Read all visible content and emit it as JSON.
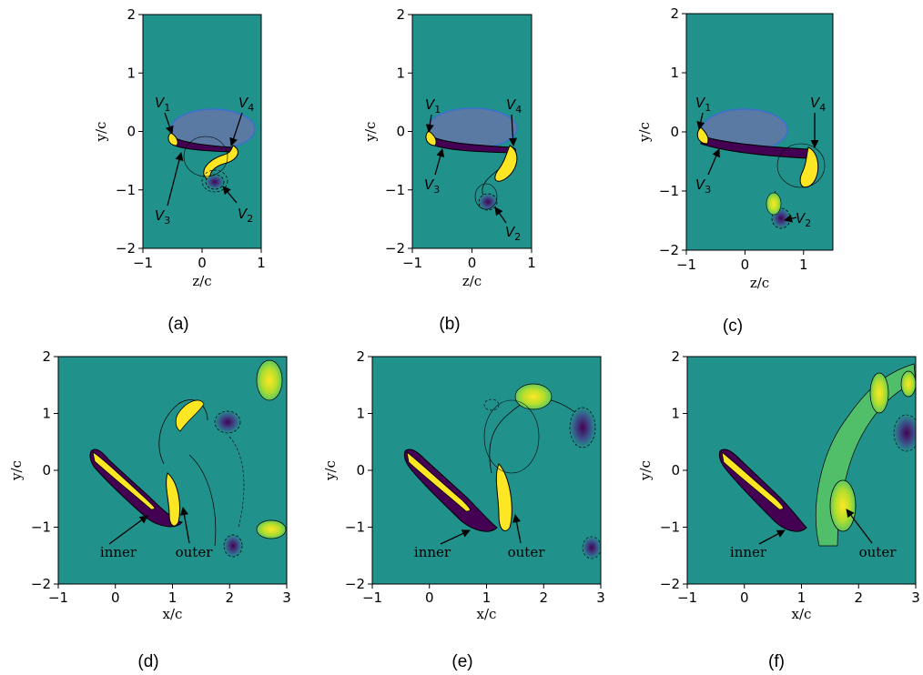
{
  "figure": {
    "colors": {
      "background": "#21918c",
      "positive_strong": "#fde725",
      "positive_mid": "#b5de2b",
      "positive_weak": "#5ec962",
      "negative_strong": "#440154",
      "negative_mid": "#3b528b",
      "contour_line": "#000000",
      "wing_ellipse": "#7a6fb0"
    },
    "top_row": {
      "x_label": "z/c",
      "y_label": "y/c",
      "y_ticks": [
        "2",
        "1",
        "0",
        "−1",
        "−2"
      ],
      "vortex_labels": {
        "V1": {
          "main": "V",
          "sub": "1"
        },
        "V2": {
          "main": "V",
          "sub": "2"
        },
        "V3": {
          "main": "V",
          "sub": "3"
        },
        "V4": {
          "main": "V",
          "sub": "4"
        }
      },
      "panels": [
        {
          "caption": "(a)",
          "x_ticks": [
            "−1",
            "0",
            "1"
          ],
          "xlim": [
            -1,
            1
          ],
          "ylim": [
            -2,
            2
          ]
        },
        {
          "caption": "(b)",
          "x_ticks": [
            "−1",
            "0",
            "1"
          ],
          "xlim": [
            -1,
            1
          ],
          "ylim": [
            -2,
            2
          ]
        },
        {
          "caption": "(c)",
          "x_ticks": [
            "−1",
            "0",
            "1"
          ],
          "xlim": [
            -1,
            1.5
          ],
          "ylim": [
            -2,
            2
          ]
        }
      ]
    },
    "bottom_row": {
      "x_label": "x/c",
      "y_label": "y/c",
      "y_ticks": [
        "2",
        "1",
        "0",
        "−1",
        "−2"
      ],
      "x_ticks": [
        "−1",
        "0",
        "1",
        "2",
        "3"
      ],
      "xlim": [
        -1,
        3
      ],
      "ylim": [
        -2,
        2
      ],
      "annotations": {
        "inner": "inner",
        "outer": "outer"
      },
      "panels": [
        {
          "caption": "(d)"
        },
        {
          "caption": "(e)"
        },
        {
          "caption": "(f)"
        }
      ]
    }
  }
}
